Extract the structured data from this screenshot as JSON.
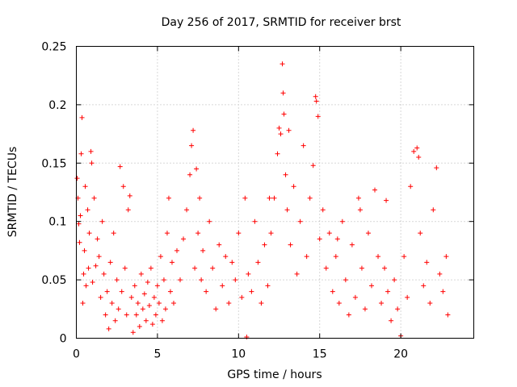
{
  "chart_data": {
    "type": "scatter",
    "title": "Day 256 of 2017, SRMTID for receiver brst",
    "xlabel": "GPS time / hours",
    "ylabel": "SRMTID / TECUs",
    "xlim": [
      0,
      24.5
    ],
    "ylim": [
      0,
      0.25
    ],
    "xticks": [
      0,
      5,
      10,
      15,
      20
    ],
    "xtick_labels": [
      "0",
      "5",
      "10",
      "15",
      "20"
    ],
    "yticks": [
      0,
      0.05,
      0.1,
      0.15,
      0.2,
      0.25
    ],
    "ytick_labels": [
      "0",
      "0.05",
      "0.1",
      "0.15",
      "0.2",
      "0.25"
    ],
    "grid": true,
    "marker": "+",
    "color": "#ff0000",
    "series": [
      {
        "name": "SRMTID",
        "points": [
          [
            0.05,
            0.137
          ],
          [
            0.1,
            0.12
          ],
          [
            0.15,
            0.098
          ],
          [
            0.2,
            0.082
          ],
          [
            0.25,
            0.105
          ],
          [
            0.3,
            0.158
          ],
          [
            0.35,
            0.189
          ],
          [
            0.4,
            0.03
          ],
          [
            0.45,
            0.055
          ],
          [
            0.5,
            0.075
          ],
          [
            0.55,
            0.13
          ],
          [
            0.6,
            0.045
          ],
          [
            0.7,
            0.11
          ],
          [
            0.75,
            0.06
          ],
          [
            0.8,
            0.09
          ],
          [
            0.9,
            0.16
          ],
          [
            0.95,
            0.15
          ],
          [
            1.0,
            0.048
          ],
          [
            1.1,
            0.12
          ],
          [
            1.2,
            0.062
          ],
          [
            1.3,
            0.085
          ],
          [
            1.4,
            0.07
          ],
          [
            1.5,
            0.035
          ],
          [
            1.6,
            0.1
          ],
          [
            1.7,
            0.055
          ],
          [
            1.8,
            0.02
          ],
          [
            1.9,
            0.04
          ],
          [
            2.0,
            0.008
          ],
          [
            2.1,
            0.065
          ],
          [
            2.2,
            0.03
          ],
          [
            2.3,
            0.09
          ],
          [
            2.4,
            0.015
          ],
          [
            2.5,
            0.05
          ],
          [
            2.6,
            0.025
          ],
          [
            2.7,
            0.147
          ],
          [
            2.8,
            0.04
          ],
          [
            2.9,
            0.13
          ],
          [
            3.0,
            0.06
          ],
          [
            3.1,
            0.02
          ],
          [
            3.2,
            0.11
          ],
          [
            3.3,
            0.122
          ],
          [
            3.4,
            0.035
          ],
          [
            3.5,
            0.005
          ],
          [
            3.6,
            0.045
          ],
          [
            3.7,
            0.02
          ],
          [
            3.8,
            0.03
          ],
          [
            3.9,
            0.01
          ],
          [
            4.0,
            0.055
          ],
          [
            4.1,
            0.025
          ],
          [
            4.2,
            0.038
          ],
          [
            4.3,
            0.015
          ],
          [
            4.4,
            0.048
          ],
          [
            4.5,
            0.028
          ],
          [
            4.6,
            0.06
          ],
          [
            4.7,
            0.012
          ],
          [
            4.8,
            0.035
          ],
          [
            4.9,
            0.02
          ],
          [
            5.0,
            0.045
          ],
          [
            5.1,
            0.03
          ],
          [
            5.2,
            0.07
          ],
          [
            5.3,
            0.015
          ],
          [
            5.4,
            0.05
          ],
          [
            5.5,
            0.025
          ],
          [
            5.6,
            0.09
          ],
          [
            5.7,
            0.12
          ],
          [
            5.8,
            0.04
          ],
          [
            5.9,
            0.065
          ],
          [
            6.0,
            0.03
          ],
          [
            6.2,
            0.075
          ],
          [
            6.4,
            0.05
          ],
          [
            6.6,
            0.085
          ],
          [
            6.8,
            0.11
          ],
          [
            7.0,
            0.14
          ],
          [
            7.1,
            0.165
          ],
          [
            7.2,
            0.178
          ],
          [
            7.3,
            0.06
          ],
          [
            7.4,
            0.145
          ],
          [
            7.5,
            0.09
          ],
          [
            7.6,
            0.12
          ],
          [
            7.7,
            0.05
          ],
          [
            7.8,
            0.075
          ],
          [
            8.0,
            0.04
          ],
          [
            8.2,
            0.1
          ],
          [
            8.4,
            0.06
          ],
          [
            8.6,
            0.025
          ],
          [
            8.8,
            0.08
          ],
          [
            9.0,
            0.045
          ],
          [
            9.2,
            0.07
          ],
          [
            9.4,
            0.03
          ],
          [
            9.6,
            0.065
          ],
          [
            9.8,
            0.05
          ],
          [
            10.0,
            0.09
          ],
          [
            10.2,
            0.035
          ],
          [
            10.4,
            0.12
          ],
          [
            10.5,
            0.001
          ],
          [
            10.6,
            0.055
          ],
          [
            10.8,
            0.04
          ],
          [
            11.0,
            0.1
          ],
          [
            11.2,
            0.065
          ],
          [
            11.4,
            0.03
          ],
          [
            11.6,
            0.08
          ],
          [
            11.8,
            0.045
          ],
          [
            12.0,
            0.09
          ],
          [
            12.2,
            0.12
          ],
          [
            12.4,
            0.158
          ],
          [
            12.6,
            0.175
          ],
          [
            12.7,
            0.235
          ],
          [
            12.75,
            0.21
          ],
          [
            12.8,
            0.192
          ],
          [
            12.9,
            0.14
          ],
          [
            13.0,
            0.11
          ],
          [
            13.2,
            0.08
          ],
          [
            13.4,
            0.13
          ],
          [
            13.6,
            0.055
          ],
          [
            13.8,
            0.1
          ],
          [
            14.0,
            0.165
          ],
          [
            14.2,
            0.07
          ],
          [
            14.4,
            0.12
          ],
          [
            14.6,
            0.148
          ],
          [
            14.75,
            0.207
          ],
          [
            14.8,
            0.203
          ],
          [
            14.9,
            0.19
          ],
          [
            15.0,
            0.085
          ],
          [
            15.2,
            0.11
          ],
          [
            15.4,
            0.06
          ],
          [
            15.6,
            0.09
          ],
          [
            15.8,
            0.04
          ],
          [
            16.0,
            0.07
          ],
          [
            16.2,
            0.03
          ],
          [
            16.4,
            0.1
          ],
          [
            16.6,
            0.05
          ],
          [
            16.8,
            0.02
          ],
          [
            17.0,
            0.08
          ],
          [
            17.2,
            0.035
          ],
          [
            17.4,
            0.12
          ],
          [
            17.6,
            0.06
          ],
          [
            17.8,
            0.025
          ],
          [
            18.0,
            0.09
          ],
          [
            18.2,
            0.045
          ],
          [
            18.4,
            0.127
          ],
          [
            18.6,
            0.07
          ],
          [
            18.8,
            0.03
          ],
          [
            19.0,
            0.06
          ],
          [
            19.2,
            0.04
          ],
          [
            19.4,
            0.015
          ],
          [
            19.6,
            0.05
          ],
          [
            19.8,
            0.025
          ],
          [
            20.0,
            0.002
          ],
          [
            20.2,
            0.07
          ],
          [
            20.4,
            0.035
          ],
          [
            20.6,
            0.13
          ],
          [
            20.8,
            0.16
          ],
          [
            21.0,
            0.163
          ],
          [
            21.2,
            0.09
          ],
          [
            21.4,
            0.045
          ],
          [
            21.6,
            0.065
          ],
          [
            21.8,
            0.03
          ],
          [
            22.0,
            0.11
          ],
          [
            22.2,
            0.146
          ],
          [
            22.4,
            0.055
          ],
          [
            22.6,
            0.04
          ],
          [
            22.8,
            0.07
          ],
          [
            22.9,
            0.02
          ],
          [
            21.1,
            0.155
          ],
          [
            19.1,
            0.118
          ],
          [
            17.5,
            0.11
          ],
          [
            16.1,
            0.085
          ],
          [
            13.1,
            0.178
          ],
          [
            12.5,
            0.18
          ],
          [
            11.9,
            0.12
          ]
        ]
      }
    ]
  }
}
